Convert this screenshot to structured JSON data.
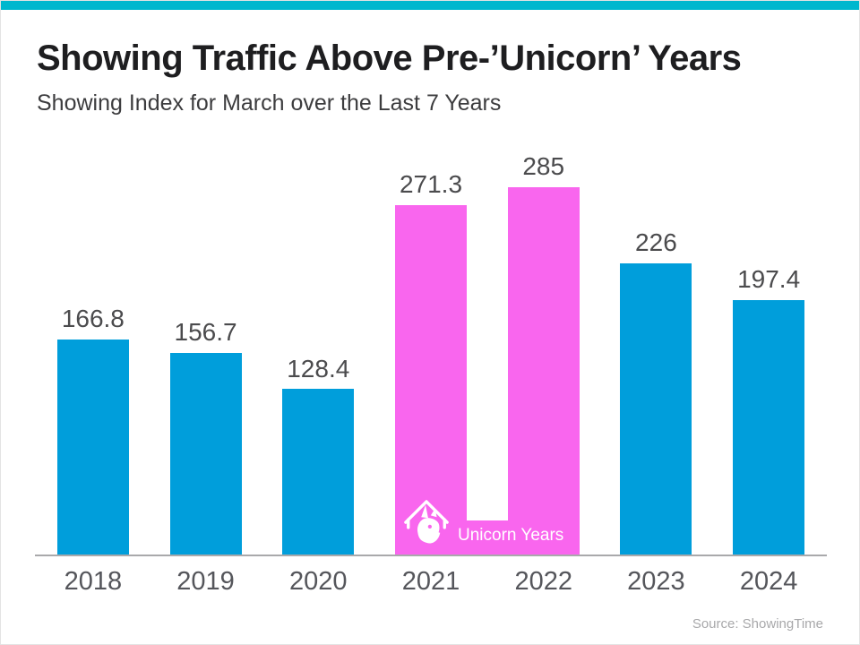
{
  "page": {
    "title": "Showing Traffic Above Pre-’Unicorn’ Years",
    "subtitle": "Showing Index for March over the Last 7 Years",
    "source": "Source: ShowingTime"
  },
  "unicorn_label": "Unicorn Years",
  "colors": {
    "top_bar": "#00b7ce",
    "bar_blue": "#009edb",
    "bar_pink": "#f966ee",
    "axis_line": "#a9a9ab",
    "value_text": "#4b4b4d",
    "year_text": "#55565b"
  },
  "chart_data": {
    "type": "bar",
    "title": "Showing Traffic Above Pre-’Unicorn’ Years",
    "subtitle": "Showing Index for March over the Last 7 Years",
    "categories": [
      "2018",
      "2019",
      "2020",
      "2021",
      "2022",
      "2023",
      "2024"
    ],
    "values": [
      166.8,
      156.7,
      128.4,
      271.3,
      285,
      226,
      197.4
    ],
    "value_labels": [
      "166.8",
      "156.7",
      "128.4",
      "271.3",
      "285",
      "226",
      "197.4"
    ],
    "highlight_years": [
      "2021",
      "2022"
    ],
    "highlight_label": "Unicorn Years",
    "xlabel": "",
    "ylabel": "",
    "ylim": [
      0,
      300
    ],
    "grid": false,
    "legend": "none",
    "source": "Source: ShowingTime"
  }
}
